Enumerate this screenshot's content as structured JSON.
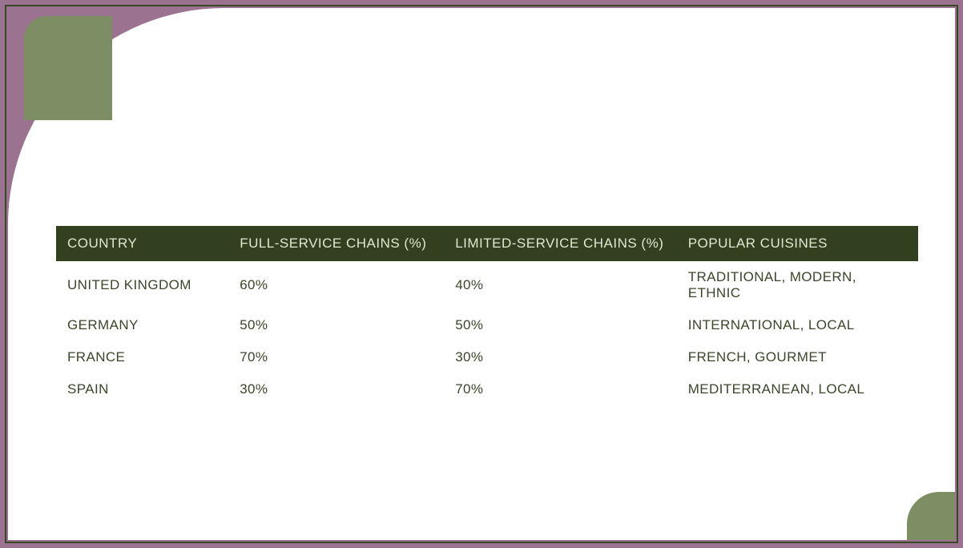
{
  "styling": {
    "page_bg": "#9b7390",
    "panel_bg": "#ffffff",
    "accent_square": "#7d8d64",
    "border_color": "#384726",
    "table_header_bg": "#33401f",
    "table_header_text": "#dfe6d2",
    "table_body_text": "#3a4629",
    "font_size_header": 17,
    "font_size_body": 17,
    "panel_radius_tl": 270,
    "square_radius_tl": 28,
    "bottom_shape_radius_tl": 40
  },
  "table": {
    "type": "table",
    "columns": [
      {
        "key": "country",
        "label": "COUNTRY",
        "width_pct": 20,
        "align": "left"
      },
      {
        "key": "full_service",
        "label": "FULL-SERVICE CHAINS (%)",
        "width_pct": 25,
        "align": "left"
      },
      {
        "key": "limited_service",
        "label": "LIMITED-SERVICE CHAINS (%)",
        "width_pct": 27,
        "align": "left"
      },
      {
        "key": "cuisines",
        "label": "POPULAR CUISINES",
        "width_pct": 28,
        "align": "left"
      }
    ],
    "rows": [
      {
        "country": "UNITED KINGDOM",
        "full_service": "60%",
        "limited_service": "40%",
        "cuisines": "TRADITIONAL, MODERN, ETHNIC"
      },
      {
        "country": "GERMANY",
        "full_service": "50%",
        "limited_service": "50%",
        "cuisines": "INTERNATIONAL, LOCAL"
      },
      {
        "country": "FRANCE",
        "full_service": "70%",
        "limited_service": "30%",
        "cuisines": "FRENCH, GOURMET"
      },
      {
        "country": "SPAIN",
        "full_service": "30%",
        "limited_service": "70%",
        "cuisines": "MEDITERRANEAN, LOCAL"
      }
    ]
  }
}
